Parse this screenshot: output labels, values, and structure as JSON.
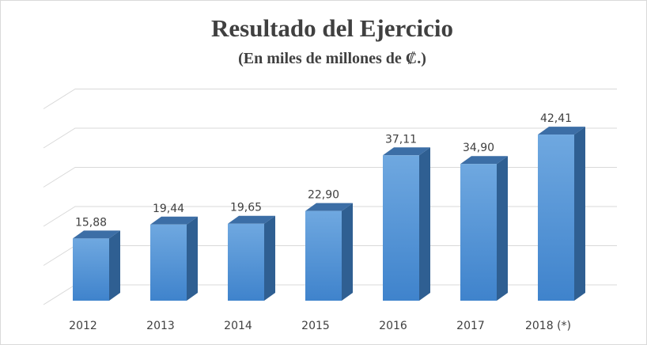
{
  "chart_data": {
    "type": "bar3d",
    "title": "Resultado del Ejercicio",
    "subtitle": "(En miles de millones de ₡.)",
    "categories": [
      "2012",
      "2013",
      "2014",
      "2015",
      "2016",
      "2017",
      "2018 (*)"
    ],
    "values": [
      15.88,
      19.44,
      19.65,
      22.9,
      37.11,
      34.9,
      42.41
    ],
    "value_labels": [
      "15,88",
      "19,44",
      "19,65",
      "22,90",
      "37,11",
      "34,90",
      "42,41"
    ],
    "color": "#4a8fd8",
    "ylim": [
      0,
      50
    ],
    "yticks": [
      0,
      10,
      20,
      30,
      40,
      50
    ],
    "grid": true
  }
}
